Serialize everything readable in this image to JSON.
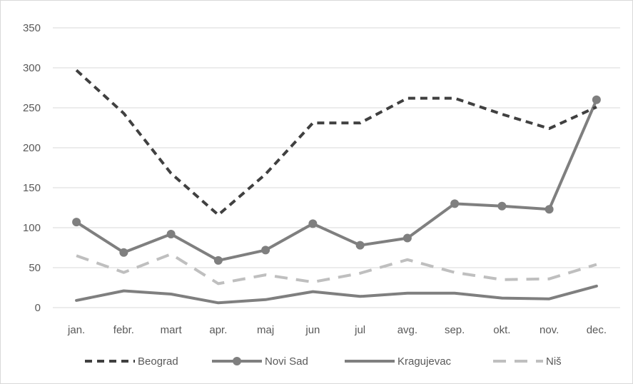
{
  "chart_data": {
    "type": "line",
    "categories": [
      "jan.",
      "febr.",
      "mart",
      "apr.",
      "maj",
      "jun",
      "jul",
      "avg.",
      "sep.",
      "okt.",
      "nov.",
      "dec."
    ],
    "ylim": [
      0,
      350
    ],
    "yticks": [
      "0",
      "50",
      "100",
      "150",
      "200",
      "250",
      "300",
      "350"
    ],
    "ytick_values": [
      0,
      50,
      100,
      150,
      200,
      250,
      300,
      350
    ],
    "grid": true,
    "legend_position": "bottom",
    "series": [
      {
        "name": "Beograd",
        "style": "dashed-dark",
        "color": "#404040",
        "values": [
          297,
          243,
          168,
          116,
          167,
          231,
          231,
          262,
          262,
          242,
          224,
          251
        ]
      },
      {
        "name": "Novi Sad",
        "style": "solid-markers",
        "color": "#7f7f7f",
        "values": [
          107,
          69,
          92,
          59,
          72,
          105,
          78,
          87,
          130,
          127,
          123,
          260
        ]
      },
      {
        "name": "Kragujevac",
        "style": "solid",
        "color": "#7f7f7f",
        "values": [
          9,
          21,
          17,
          6,
          10,
          20,
          14,
          18,
          18,
          12,
          11,
          27
        ]
      },
      {
        "name": "Niš",
        "style": "dashed-light",
        "color": "#bfbfbf",
        "values": [
          65,
          44,
          67,
          30,
          41,
          32,
          43,
          60,
          44,
          35,
          36,
          54
        ]
      }
    ]
  }
}
